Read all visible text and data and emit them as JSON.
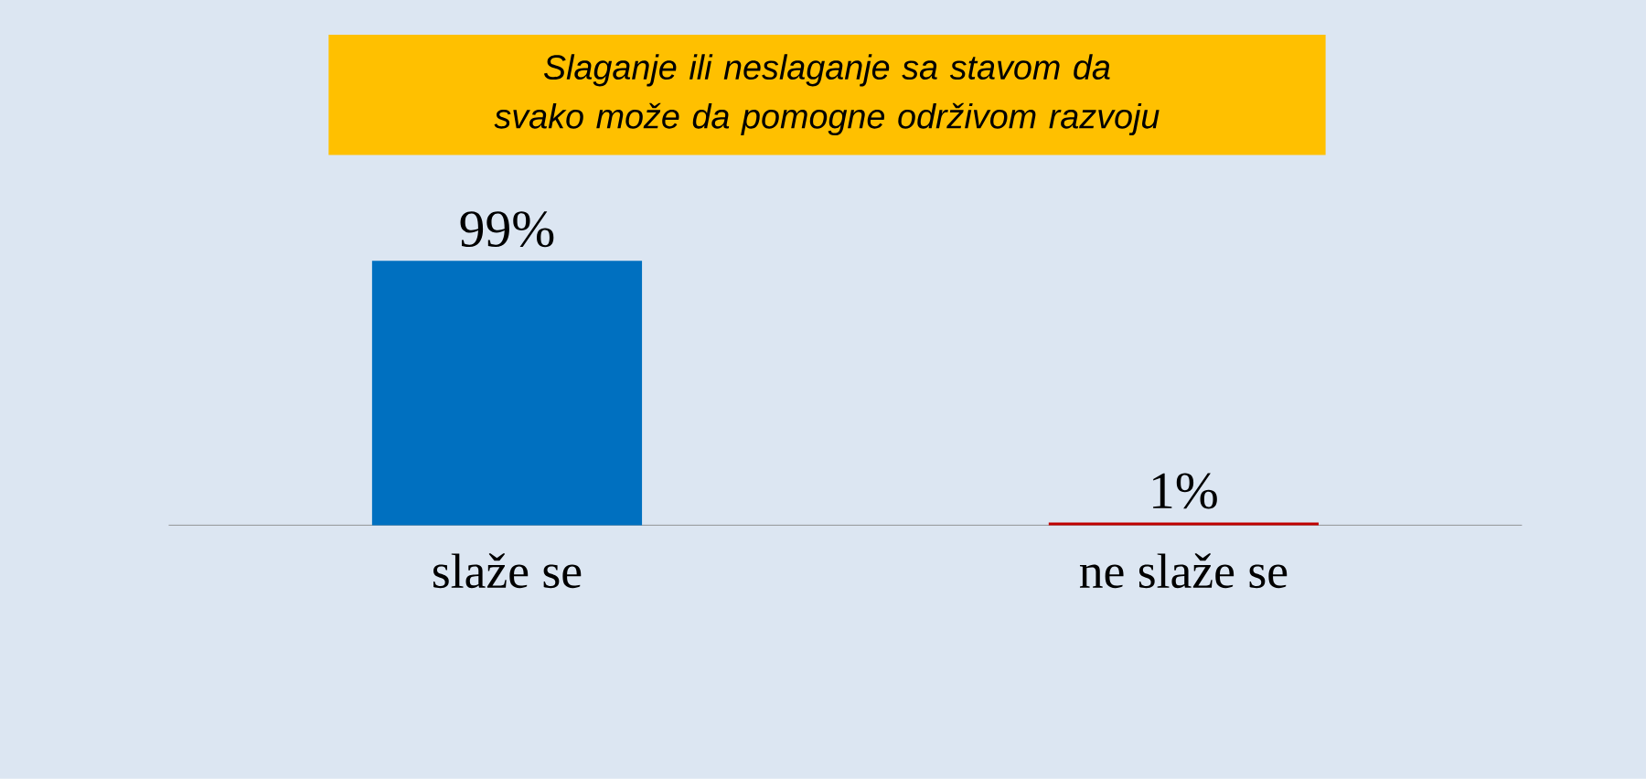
{
  "chart_data": {
    "type": "bar",
    "title": "Slaganje ili neslaganje sa stavom da svako može da pomogne održivom razvoju",
    "categories": [
      "slaže se",
      "ne slaže se"
    ],
    "values": [
      99,
      1
    ],
    "colors": [
      "#0070c0",
      "#c00000"
    ],
    "value_labels": [
      "99%",
      "1%"
    ]
  }
}
